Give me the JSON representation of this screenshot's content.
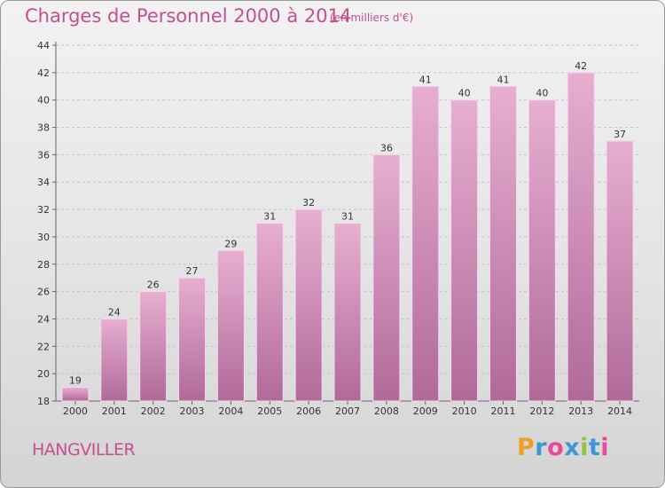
{
  "header": {
    "title": "Charges de Personnel 2000 à 2014",
    "subtitle": "(en milliers d'€)"
  },
  "footer": {
    "commune": "HANGVILLER",
    "logo": "Proxiti"
  },
  "colors": {
    "bar_light": "#e8aed2",
    "bar_dark": "#b06a99",
    "text_accent": "#c54f8f",
    "logo_letters": [
      "#f0a020",
      "#3a98d8",
      "#e84a9a",
      "#3a98d8",
      "#8dc63f",
      "#3a98d8",
      "#e84a9a"
    ]
  },
  "chart_data": {
    "type": "bar",
    "title": "Charges de Personnel 2000 à 2014",
    "subtitle": "(en milliers d'€)",
    "xlabel": "",
    "ylabel": "",
    "categories": [
      "2000",
      "2001",
      "2002",
      "2003",
      "2004",
      "2005",
      "2006",
      "2007",
      "2008",
      "2009",
      "2010",
      "2011",
      "2012",
      "2013",
      "2014"
    ],
    "values": [
      19,
      24,
      26,
      27,
      29,
      31,
      32,
      31,
      36,
      41,
      40,
      41,
      40,
      42,
      37
    ],
    "ylim": [
      18,
      44
    ],
    "yticks": [
      18,
      20,
      22,
      24,
      26,
      28,
      30,
      32,
      34,
      36,
      38,
      40,
      42,
      44
    ],
    "grid": true
  }
}
